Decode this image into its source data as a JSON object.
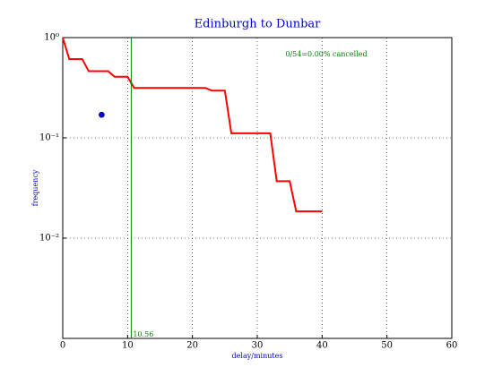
{
  "chart_data": {
    "type": "line",
    "title": "Edinburgh to Dunbar",
    "x_label": "delay/minutes",
    "y_label": "frequency",
    "annotation": "0/54=0.00% cancelled",
    "x": [
      0,
      1,
      3,
      4,
      7,
      8,
      10,
      11,
      22,
      23,
      25,
      26,
      32,
      33,
      35,
      36,
      40
    ],
    "series": [
      {
        "color": "#ff0000",
        "values": [
          1,
          0.611,
          0.611,
          0.463,
          0.463,
          0.407,
          0.407,
          0.315,
          0.315,
          0.296,
          0.296,
          0.111,
          0.111,
          0.037,
          0.037,
          0.0185,
          0.0185
        ]
      }
    ],
    "marker": {
      "x": 6,
      "y": 0.17,
      "color": "#0000ff"
    },
    "vline": {
      "x": 10.56,
      "color": "#008000"
    },
    "xlim": [
      0,
      60
    ],
    "xticks": [
      0,
      10,
      20,
      30,
      40,
      50,
      60
    ],
    "ylim": [
      0.001,
      1
    ],
    "log_y": true,
    "yticks": [
      {
        "value": 1,
        "label": "10⁰"
      },
      {
        "value": 0.1,
        "label": "10⁻¹"
      },
      {
        "value": 0.01,
        "label": "10⁻²"
      }
    ],
    "grid": true
  }
}
